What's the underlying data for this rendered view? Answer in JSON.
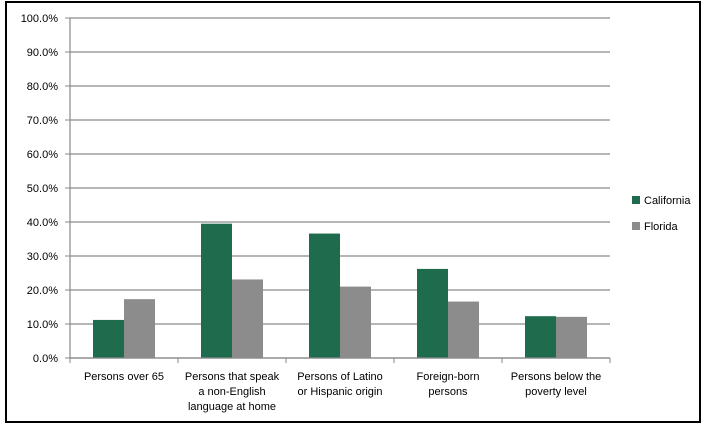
{
  "chart_data": {
    "type": "bar",
    "categories": [
      [
        "Persons over 65"
      ],
      [
        "Persons that speak",
        "a non-English",
        "language at home"
      ],
      [
        "Persons of Latino",
        "or Hispanic origin"
      ],
      [
        "Foreign-born",
        "persons"
      ],
      [
        "Persons below the",
        "poverty level"
      ]
    ],
    "series": [
      {
        "name": "California",
        "color": "#1e6b4e",
        "values": [
          11.2,
          39.5,
          36.6,
          26.2,
          12.3
        ]
      },
      {
        "name": "Florida",
        "color": "#8c8c8c",
        "values": [
          17.3,
          23.1,
          21.0,
          16.6,
          12.1
        ]
      }
    ],
    "ylim": [
      0,
      100
    ],
    "yticks": [
      "0.0%",
      "10.0%",
      "20.0%",
      "30.0%",
      "40.0%",
      "50.0%",
      "60.0%",
      "70.0%",
      "80.0%",
      "90.0%",
      "100.0%"
    ],
    "grid": true,
    "legend_position": "right"
  }
}
